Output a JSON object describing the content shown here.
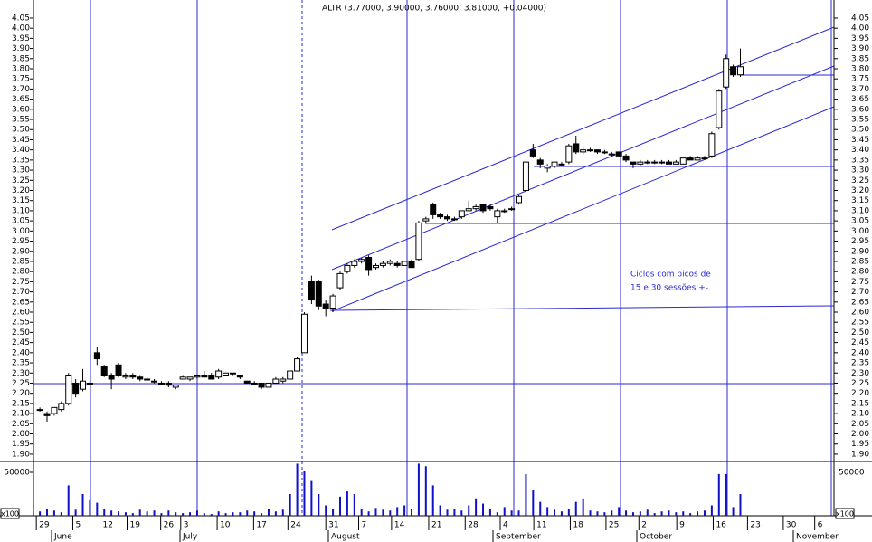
{
  "chart_data": {
    "type": "candlestick",
    "title": "ALTR (3.77000, 3.90000, 3.76000, 3.81000, +0.04000)",
    "annotation": [
      "Ciclos com picos de",
      "15 e 30 sessões +-"
    ],
    "x": [
      0,
      1,
      2,
      3,
      4,
      5,
      6,
      7,
      8,
      9,
      10,
      11,
      12,
      13,
      14,
      15,
      16,
      17,
      18,
      19,
      20,
      21,
      22,
      23,
      24,
      25,
      26,
      27,
      28,
      29,
      30,
      31,
      32,
      33,
      34,
      35,
      36,
      37,
      38,
      39,
      40,
      41,
      42,
      43,
      44,
      45,
      46,
      47,
      48,
      49,
      50,
      51,
      52,
      53,
      54,
      55,
      56,
      57,
      58,
      59,
      60,
      61,
      62,
      63,
      64,
      65,
      66,
      67,
      68,
      69,
      70,
      71,
      72,
      73,
      74,
      75,
      76,
      77,
      78,
      79,
      80,
      81,
      82,
      83,
      84,
      85,
      86,
      87,
      88,
      89,
      90,
      91,
      92,
      93,
      94,
      95,
      96,
      97,
      98
    ],
    "open": [
      2.12,
      2.1,
      2.1,
      2.12,
      2.15,
      2.25,
      2.22,
      2.25,
      2.4,
      2.33,
      2.29,
      2.34,
      2.28,
      2.29,
      2.28,
      2.27,
      2.26,
      2.25,
      2.25,
      2.23,
      2.27,
      2.27,
      2.28,
      2.29,
      2.29,
      2.28,
      2.29,
      2.3,
      2.29,
      2.26,
      2.25,
      2.25,
      2.23,
      2.25,
      2.26,
      2.27,
      2.31,
      2.4,
      2.75,
      2.75,
      2.64,
      2.62,
      2.72,
      2.8,
      2.83,
      2.85,
      2.87,
      2.82,
      2.83,
      2.84,
      2.84,
      2.83,
      2.85,
      2.86,
      3.05,
      3.13,
      3.08,
      3.07,
      3.06,
      3.07,
      3.1,
      3.11,
      3.13,
      3.12,
      3.07,
      3.1,
      3.11,
      3.14,
      3.2,
      3.4,
      3.35,
      3.31,
      3.32,
      3.33,
      3.34,
      3.43,
      3.39,
      3.4,
      3.4,
      3.39,
      3.38,
      3.39,
      3.37,
      3.34,
      3.33,
      3.34,
      3.34,
      3.34,
      3.34,
      3.33,
      3.33,
      3.36,
      3.35,
      3.36,
      3.37,
      3.51,
      3.71,
      3.81,
      3.77
    ],
    "high": [
      2.13,
      2.11,
      2.13,
      2.16,
      2.3,
      2.27,
      2.32,
      2.26,
      2.43,
      2.34,
      2.3,
      2.35,
      2.3,
      2.3,
      2.29,
      2.28,
      2.27,
      2.26,
      2.26,
      2.24,
      2.29,
      2.28,
      2.29,
      2.31,
      2.3,
      2.32,
      2.3,
      2.3,
      2.29,
      2.26,
      2.26,
      2.25,
      2.25,
      2.28,
      2.28,
      2.31,
      2.38,
      2.6,
      2.78,
      2.76,
      2.66,
      2.69,
      2.8,
      2.84,
      2.86,
      2.87,
      2.88,
      2.84,
      2.85,
      2.86,
      2.85,
      2.85,
      2.86,
      3.05,
      3.07,
      3.14,
      3.09,
      3.08,
      3.07,
      3.1,
      3.15,
      3.13,
      3.13,
      3.13,
      3.11,
      3.11,
      3.12,
      3.18,
      3.35,
      3.43,
      3.36,
      3.33,
      3.34,
      3.34,
      3.43,
      3.47,
      3.41,
      3.41,
      3.4,
      3.4,
      3.39,
      3.39,
      3.38,
      3.34,
      3.35,
      3.35,
      3.35,
      3.35,
      3.35,
      3.35,
      3.36,
      3.37,
      3.37,
      3.37,
      3.49,
      3.7,
      3.87,
      3.82,
      3.9
    ],
    "low": [
      2.11,
      2.06,
      2.09,
      2.11,
      2.14,
      2.18,
      2.21,
      2.24,
      2.34,
      2.28,
      2.22,
      2.28,
      2.27,
      2.27,
      2.26,
      2.26,
      2.25,
      2.24,
      2.23,
      2.22,
      2.27,
      2.26,
      2.27,
      2.28,
      2.27,
      2.27,
      2.29,
      2.29,
      2.27,
      2.25,
      2.24,
      2.22,
      2.23,
      2.25,
      2.25,
      2.27,
      2.31,
      2.4,
      2.64,
      2.61,
      2.58,
      2.6,
      2.71,
      2.79,
      2.82,
      2.84,
      2.78,
      2.81,
      2.82,
      2.83,
      2.82,
      2.83,
      2.82,
      2.85,
      3.04,
      3.06,
      3.06,
      3.05,
      3.05,
      3.06,
      3.1,
      3.1,
      3.09,
      3.1,
      3.04,
      3.09,
      3.1,
      3.13,
      3.19,
      3.36,
      3.31,
      3.29,
      3.31,
      3.32,
      3.33,
      3.38,
      3.38,
      3.39,
      3.38,
      3.38,
      3.37,
      3.37,
      3.34,
      3.31,
      3.32,
      3.33,
      3.33,
      3.33,
      3.33,
      3.33,
      3.33,
      3.35,
      3.35,
      3.35,
      3.36,
      3.5,
      3.7,
      3.76,
      3.76
    ],
    "close": [
      2.12,
      2.09,
      2.13,
      2.15,
      2.29,
      2.2,
      2.26,
      2.25,
      2.37,
      2.29,
      2.27,
      2.29,
      2.29,
      2.28,
      2.27,
      2.27,
      2.26,
      2.25,
      2.24,
      2.24,
      2.28,
      2.28,
      2.29,
      2.28,
      2.27,
      2.31,
      2.3,
      2.3,
      2.28,
      2.25,
      2.25,
      2.23,
      2.25,
      2.27,
      2.27,
      2.31,
      2.37,
      2.59,
      2.66,
      2.63,
      2.62,
      2.68,
      2.79,
      2.83,
      2.85,
      2.86,
      2.81,
      2.83,
      2.84,
      2.85,
      2.83,
      2.85,
      2.82,
      3.04,
      3.06,
      3.08,
      3.07,
      3.06,
      3.06,
      3.1,
      3.11,
      3.12,
      3.1,
      3.11,
      3.1,
      3.1,
      3.11,
      3.17,
      3.34,
      3.37,
      3.33,
      3.32,
      3.34,
      3.33,
      3.42,
      3.39,
      3.4,
      3.4,
      3.39,
      3.39,
      3.38,
      3.37,
      3.35,
      3.33,
      3.34,
      3.34,
      3.34,
      3.34,
      3.33,
      3.34,
      3.36,
      3.35,
      3.36,
      3.36,
      3.48,
      3.69,
      3.85,
      3.77,
      3.81
    ],
    "volume": [
      5000,
      8000,
      6000,
      4000,
      35000,
      7000,
      25000,
      18000,
      15000,
      8000,
      6000,
      5000,
      4000,
      3000,
      7000,
      5000,
      6000,
      3000,
      6000,
      4000,
      3000,
      4000,
      6000,
      3000,
      2000,
      5000,
      3000,
      4000,
      4000,
      6000,
      5000,
      3000,
      8000,
      5000,
      7000,
      25000,
      60000,
      52000,
      40000,
      25000,
      12000,
      8000,
      22000,
      28000,
      25000,
      8000,
      5000,
      9000,
      7000,
      6000,
      10000,
      12000,
      8000,
      60000,
      57000,
      35000,
      12000,
      7000,
      8000,
      6000,
      12000,
      20000,
      14000,
      8000,
      4000,
      10000,
      6000,
      6000,
      48000,
      30000,
      16000,
      10000,
      7000,
      5000,
      8000,
      16000,
      20000,
      6000,
      5000,
      4000,
      6000,
      10000,
      6000,
      4000,
      5000,
      7000,
      3000,
      5000,
      6000,
      4000,
      5000,
      3000,
      5000,
      6000,
      12000,
      48000,
      48000,
      10000,
      25000
    ],
    "ylim": [
      1.864,
      4.139
    ],
    "yticks": [
      {
        "value": 1.9,
        "label": "1.90"
      },
      {
        "value": 1.95,
        "label": "1.95"
      },
      {
        "value": 2.0,
        "label": "2.00"
      },
      {
        "value": 2.05,
        "label": "2.05"
      },
      {
        "value": 2.1,
        "label": "2.10"
      },
      {
        "value": 2.15,
        "label": "2.15"
      },
      {
        "value": 2.2,
        "label": "2.20"
      },
      {
        "value": 2.25,
        "label": "2.25"
      },
      {
        "value": 2.3,
        "label": "2.30"
      },
      {
        "value": 2.35,
        "label": "2.35"
      },
      {
        "value": 2.4,
        "label": "2.40"
      },
      {
        "value": 2.45,
        "label": "2.45"
      },
      {
        "value": 2.5,
        "label": "2.50"
      },
      {
        "value": 2.55,
        "label": "2.55"
      },
      {
        "value": 2.6,
        "label": "2.60"
      },
      {
        "value": 2.65,
        "label": "2.65"
      },
      {
        "value": 2.7,
        "label": "2.70"
      },
      {
        "value": 2.75,
        "label": "2.75"
      },
      {
        "value": 2.8,
        "label": "2.80"
      },
      {
        "value": 2.85,
        "label": "2.85"
      },
      {
        "value": 2.9,
        "label": "2.90"
      },
      {
        "value": 2.95,
        "label": "2.95"
      },
      {
        "value": 3.0,
        "label": "3.00"
      },
      {
        "value": 3.05,
        "label": "3.05"
      },
      {
        "value": 3.1,
        "label": "3.10"
      },
      {
        "value": 3.15,
        "label": "3.15"
      },
      {
        "value": 3.2,
        "label": "3.20"
      },
      {
        "value": 3.25,
        "label": "3.25"
      },
      {
        "value": 3.3,
        "label": "3.30"
      },
      {
        "value": 3.35,
        "label": "3.35"
      },
      {
        "value": 3.4,
        "label": "3.40"
      },
      {
        "value": 3.45,
        "label": "3.45"
      },
      {
        "value": 3.5,
        "label": "3.50"
      },
      {
        "value": 3.55,
        "label": "3.55"
      },
      {
        "value": 3.6,
        "label": "3.60"
      },
      {
        "value": 3.65,
        "label": "3.65"
      },
      {
        "value": 3.7,
        "label": "3.70"
      },
      {
        "value": 3.75,
        "label": "3.75"
      },
      {
        "value": 3.8,
        "label": "3.80"
      },
      {
        "value": 3.85,
        "label": "3.85"
      },
      {
        "value": 3.9,
        "label": "3.90"
      },
      {
        "value": 3.95,
        "label": "3.95"
      },
      {
        "value": 4.0,
        "label": "4.00"
      },
      {
        "value": 4.05,
        "label": "4.05"
      }
    ],
    "xlim": [
      -0.9,
      111.1
    ],
    "xticks": [
      {
        "value": -0.5,
        "label": "29"
      },
      {
        "value": 4.6,
        "label": "5"
      },
      {
        "value": 8.4,
        "label": "12"
      },
      {
        "value": 12.2,
        "label": "19"
      },
      {
        "value": 16.9,
        "label": "26"
      },
      {
        "value": 19.7,
        "label": "3"
      },
      {
        "value": 24.8,
        "label": "10"
      },
      {
        "value": 29.9,
        "label": "17"
      },
      {
        "value": 34.7,
        "label": "24"
      },
      {
        "value": 40,
        "label": "31"
      },
      {
        "value": 44.6,
        "label": "7"
      },
      {
        "value": 49.2,
        "label": "14"
      },
      {
        "value": 54.4,
        "label": "21"
      },
      {
        "value": 59.5,
        "label": "28"
      },
      {
        "value": 64.4,
        "label": "4"
      },
      {
        "value": 69.1,
        "label": "11"
      },
      {
        "value": 74.2,
        "label": "18"
      },
      {
        "value": 79.2,
        "label": "25"
      },
      {
        "value": 83.8,
        "label": "2"
      },
      {
        "value": 89.1,
        "label": "9"
      },
      {
        "value": 94.2,
        "label": "16"
      },
      {
        "value": 99,
        "label": "23"
      },
      {
        "value": 104,
        "label": "30"
      },
      {
        "value": 108.4,
        "label": "6"
      }
    ],
    "months": [
      "June",
      "July",
      "August",
      "September",
      "October",
      "November"
    ],
    "volume_ylim": [
      0,
      62500
    ],
    "volume_yticks": [
      50000
    ],
    "volume_unit": "x100",
    "up_color": "#ffffff",
    "down_color": "#000000",
    "volume_color": "#1010c8"
  }
}
